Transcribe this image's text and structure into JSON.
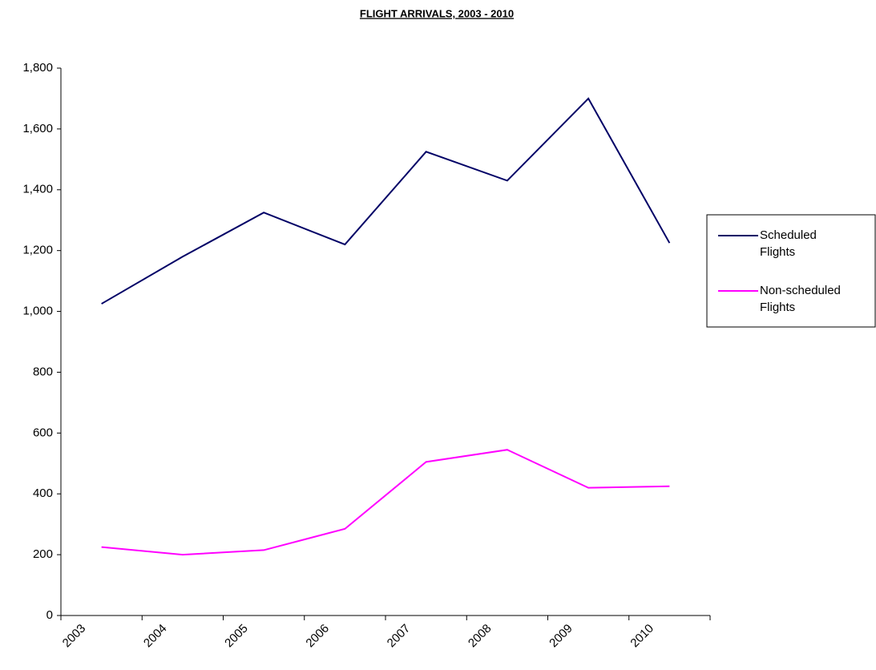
{
  "chart_data": {
    "type": "line",
    "title": "FLIGHT ARRIVALS, 2003 - 2010",
    "categories": [
      "2003",
      "2004",
      "2005",
      "2006",
      "2007",
      "2008",
      "2009",
      "2010"
    ],
    "series": [
      {
        "name": "Scheduled Flights",
        "color": "#000066",
        "values": [
          1025,
          1180,
          1325,
          1220,
          1525,
          1430,
          1700,
          1225
        ]
      },
      {
        "name": "Non-scheduled Flights",
        "color": "#ff00ff",
        "values": [
          225,
          200,
          215,
          285,
          505,
          545,
          420,
          425
        ]
      }
    ],
    "ylim": [
      0,
      1800
    ],
    "yticks": [
      0,
      200,
      400,
      600,
      800,
      {
        "value": 1000,
        "label": "1,000"
      },
      {
        "value": 1200,
        "label": "1,200"
      },
      {
        "value": 1400,
        "label": "1,400"
      },
      {
        "value": 1600,
        "label": "1,600"
      },
      {
        "value": 1800,
        "label": "1,800"
      }
    ],
    "legend": "right",
    "grid": false
  }
}
